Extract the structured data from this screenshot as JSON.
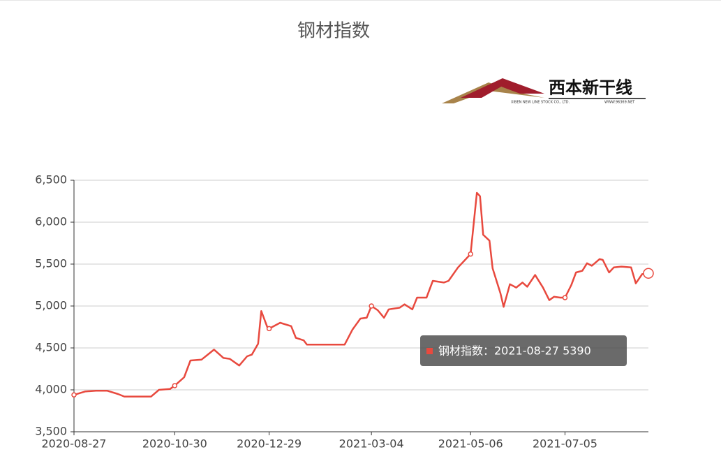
{
  "chart_data": {
    "type": "line",
    "title": "钢材指数",
    "logo": {
      "name": "西本新干线",
      "company": "XIBEN NEW LINE STOCK CO., LTD.",
      "site": "WWW.96369.NET"
    },
    "x": [
      "2020-08-27",
      "2020-09-03",
      "2020-09-10",
      "2020-09-17",
      "2020-09-24",
      "2020-09-28",
      "2020-10-15",
      "2020-10-20",
      "2020-10-27",
      "2020-10-30",
      "2020-11-05",
      "2020-11-09",
      "2020-11-16",
      "2020-11-20",
      "2020-11-24",
      "2020-11-30",
      "2020-12-04",
      "2020-12-10",
      "2020-12-15",
      "2020-12-18",
      "2020-12-22",
      "2020-12-24",
      "2020-12-28",
      "2020-12-29",
      "2021-01-05",
      "2021-01-12",
      "2021-01-15",
      "2021-01-20",
      "2021-01-22",
      "2021-02-01",
      "2021-02-15",
      "2021-02-20",
      "2021-02-25",
      "2021-03-01",
      "2021-03-04",
      "2021-03-08",
      "2021-03-12",
      "2021-03-15",
      "2021-03-22",
      "2021-03-25",
      "2021-03-30",
      "2021-04-02",
      "2021-04-08",
      "2021-04-12",
      "2021-04-19",
      "2021-04-22",
      "2021-04-28",
      "2021-05-06",
      "2021-05-10",
      "2021-05-12",
      "2021-05-14",
      "2021-05-18",
      "2021-05-20",
      "2021-05-25",
      "2021-05-27",
      "2021-05-31",
      "2021-06-04",
      "2021-06-08",
      "2021-06-11",
      "2021-06-16",
      "2021-06-21",
      "2021-06-25",
      "2021-06-28",
      "2021-07-02",
      "2021-07-05",
      "2021-07-09",
      "2021-07-12",
      "2021-07-16",
      "2021-07-19",
      "2021-07-22",
      "2021-07-27",
      "2021-07-29",
      "2021-08-02",
      "2021-08-05",
      "2021-08-10",
      "2021-08-16",
      "2021-08-19",
      "2021-08-23",
      "2021-08-27"
    ],
    "series": [
      {
        "name": "钢材指数",
        "color": "#e8493e",
        "values": [
          3940,
          3980,
          3990,
          3990,
          3950,
          3920,
          3920,
          4000,
          4010,
          4050,
          4150,
          4350,
          4360,
          4420,
          4480,
          4380,
          4370,
          4290,
          4400,
          4420,
          4550,
          4940,
          4740,
          4730,
          4800,
          4760,
          4620,
          4590,
          4540,
          4540,
          4540,
          4720,
          4850,
          4860,
          5000,
          4950,
          4860,
          4960,
          4980,
          5020,
          4960,
          5100,
          5100,
          5300,
          5280,
          5300,
          5460,
          5620,
          6350,
          6310,
          5850,
          5780,
          5450,
          5150,
          4990,
          5260,
          5220,
          5280,
          5230,
          5370,
          5220,
          5070,
          5110,
          5100,
          5100,
          5250,
          5400,
          5420,
          5510,
          5480,
          5560,
          5550,
          5400,
          5460,
          5470,
          5460,
          5270,
          5380,
          5390
        ]
      }
    ],
    "xlim": [
      "2020-08-27",
      "2021-08-27"
    ],
    "xticks": [
      "2020-08-27",
      "2020-10-30",
      "2020-12-29",
      "2021-03-04",
      "2021-05-06",
      "2021-07-05"
    ],
    "ylim": [
      3500,
      6500
    ],
    "yticks": [
      {
        "value": 3500,
        "label": "3,500"
      },
      {
        "value": 4000,
        "label": "4,000"
      },
      {
        "value": 4500,
        "label": "4,500"
      },
      {
        "value": 5000,
        "label": "5,000"
      },
      {
        "value": 5500,
        "label": "5,500"
      },
      {
        "value": 6000,
        "label": "6,000"
      },
      {
        "value": 6500,
        "label": "6,500"
      }
    ],
    "grid": true,
    "tooltip": "钢材指数：2021-08-27 5390"
  }
}
